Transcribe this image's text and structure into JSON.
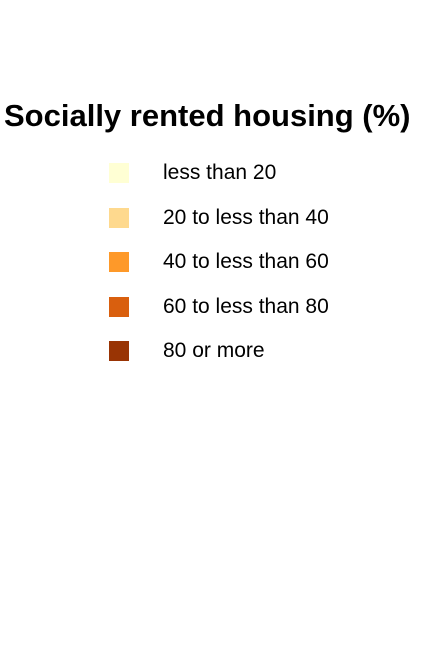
{
  "legend": {
    "title": "Socially rented housing (%)",
    "items": [
      {
        "label": "less than 20",
        "color": "#ffffd4"
      },
      {
        "label": "20 to less than 40",
        "color": "#fed98e"
      },
      {
        "label": "40 to less than 60",
        "color": "#fe9929"
      },
      {
        "label": "60 to less than 80",
        "color": "#d95f0e"
      },
      {
        "label": "80 or more",
        "color": "#993404"
      }
    ]
  }
}
